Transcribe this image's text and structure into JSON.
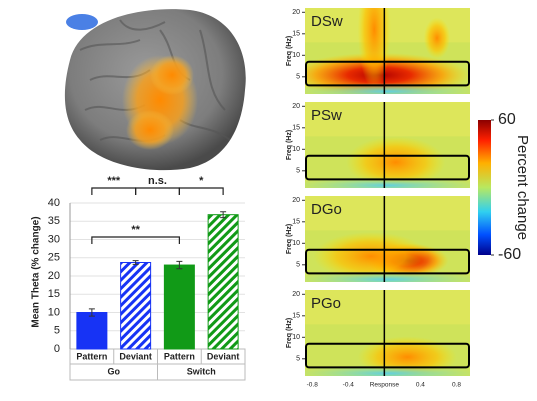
{
  "chart_data": [
    {
      "type": "bar",
      "y_label": "Mean Theta (% change)",
      "categories": [
        "Pattern",
        "Deviant",
        "Pattern",
        "Deviant"
      ],
      "groups": [
        "Go",
        "Switch"
      ],
      "values": [
        10,
        23.7,
        23,
        36.8
      ],
      "errors": [
        1,
        0.5,
        1,
        0.8
      ],
      "colors": [
        "#1733f5",
        "#1733f5",
        "#119a17",
        "#119a17"
      ],
      "hatched": [
        false,
        true,
        false,
        true
      ],
      "ylim": [
        0,
        40
      ],
      "yticks": [
        0,
        5,
        10,
        15,
        20,
        25,
        30,
        35,
        40
      ],
      "grid": true,
      "annotations": [
        {
          "label": "***",
          "between": [
            0,
            1
          ]
        },
        {
          "label": "n.s.",
          "between": [
            1,
            2
          ]
        },
        {
          "label": "*",
          "between": [
            2,
            3
          ]
        },
        {
          "label": "**",
          "between": [
            0,
            2
          ]
        }
      ]
    },
    {
      "type": "heatmap",
      "panels": [
        "DSw",
        "PSw",
        "DGo",
        "PGo"
      ],
      "y_label": "Freq (Hz)",
      "ylim": [
        1,
        21
      ],
      "yticks": [
        5,
        10,
        15,
        20
      ],
      "xlim": [
        -0.88,
        0.95
      ],
      "xticks": [
        -0.8,
        -0.4,
        {
          "value": 0,
          "label": "Response"
        },
        0.4,
        0.8
      ],
      "colorbar": {
        "label": "Percent change",
        "clim": [
          -60,
          60
        ],
        "ticks": [
          60,
          -60
        ]
      }
    }
  ]
}
